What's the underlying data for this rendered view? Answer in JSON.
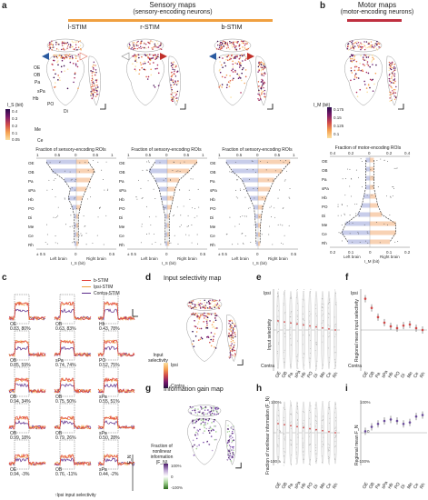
{
  "panels": {
    "a": {
      "label": "a",
      "header_title": "Sensory maps",
      "header_subtitle": "(sensory-encoding neurons)",
      "header_color": "#f0a040",
      "maps": [
        {
          "title": "l-STIM"
        },
        {
          "title": "r-STIM"
        },
        {
          "title": "b-STIM"
        }
      ],
      "colorbar_label": "I_S (bit)",
      "colorbar_ticks": [
        "0.4",
        "0.3",
        "0.2",
        "0.1",
        "0.05"
      ],
      "map_region_labels": [
        "OE",
        "OB",
        "Pa",
        "sPa",
        "Hb",
        "PO",
        "Di",
        "Me",
        "Ce"
      ],
      "fraction_title": "Fraction of sensory-encoding ROIs",
      "fraction_ticks": [
        "1",
        "0.5",
        "0",
        "0.5",
        "1"
      ],
      "regions": [
        "OE",
        "OB",
        "Pa",
        "sPa",
        "Hb",
        "PO",
        "Di",
        "Me",
        "Ce",
        "Rh"
      ],
      "x_ticks": [
        "± 0.5",
        "0",
        "0.5"
      ],
      "left_label": "Left brain",
      "right_label": "Right brain",
      "xlabel": "I_S (bit)"
    },
    "b": {
      "label": "b",
      "header_title": "Motor maps",
      "header_subtitle": "(motor-encoding neurons)",
      "header_color": "#c03040",
      "colorbar_label": "I_M (bit)",
      "colorbar_ticks": [
        "0.175",
        "0.15",
        "0.125",
        "0.1"
      ],
      "fraction_title": "Fraction of motor-encoding ROIs",
      "fraction_ticks": [
        "0.4",
        "0.2",
        "0",
        "0.2",
        "0.4"
      ],
      "x_ticks": [
        "0.2",
        "0.1",
        "0",
        "0.1",
        "0.2"
      ],
      "left_label": "Left brain",
      "right_label": "Right brain",
      "xlabel": "I_M (bit)"
    },
    "c": {
      "label": "c",
      "legend": [
        {
          "name": "b-STIM",
          "color": "#e0403a"
        },
        {
          "name": "Ipsi-STIM",
          "color": "#f0a040"
        },
        {
          "name": "Contra-STIM",
          "color": "#5a2a8a"
        }
      ],
      "traces": [
        {
          "region": "OE",
          "stats": "0.83, 80%"
        },
        {
          "region": "OB",
          "stats": "0.63, 83%"
        },
        {
          "region": "Hb",
          "stats": "0.43, 78%"
        },
        {
          "region": "OB",
          "stats": "0.85, 59%"
        },
        {
          "region": "sPa",
          "stats": "0.74, 74%"
        },
        {
          "region": "PO",
          "stats": "0.52, 75%"
        },
        {
          "region": "OB",
          "stats": "0.94, 34%"
        },
        {
          "region": "OB",
          "stats": "0.75, 50%"
        },
        {
          "region": "sPa",
          "stats": "0.55, 51%"
        },
        {
          "region": "OB",
          "stats": "0.99, 18%"
        },
        {
          "region": "OB",
          "stats": "0.79, 26%"
        },
        {
          "region": "sPa",
          "stats": "0.50, 28%"
        },
        {
          "region": "OE",
          "stats": "0.94, -3%"
        },
        {
          "region": "OB",
          "stats": "0.76, -11%"
        },
        {
          "region": "sPa",
          "stats": "0.44, -2%"
        }
      ],
      "side_label": "F_N",
      "bottom_label": "↑Ipsi input selectivity"
    },
    "d": {
      "label": "d",
      "title": "Input selectivity map",
      "colorbar_title": "Input selectivity",
      "colorbar_top": "Ipsi",
      "colorbar_bottom": "Contra"
    },
    "e": {
      "label": "e",
      "ylabel": "Input selectivity",
      "y_top": "Ipsi",
      "y_bottom": "Contra",
      "categories": [
        "OE",
        "OB",
        "Pa",
        "sPa",
        "Hb",
        "PO",
        "Di",
        "Me",
        "Ce",
        "Rh"
      ]
    },
    "f": {
      "label": "f",
      "ylabel": "Regional mean input selectivity",
      "y_top": "Ipsi",
      "y_bottom": "Contra",
      "categories": [
        "OE",
        "OB",
        "Pa",
        "sPa",
        "Hb",
        "PO",
        "Di",
        "Me",
        "Ce",
        "Rh"
      ]
    },
    "g": {
      "label": "g",
      "title": "Information gain map",
      "colorbar_title": "Fraction of nonlinear information (F_N)",
      "colorbar_ticks": [
        "100%",
        "0",
        "-100%"
      ]
    },
    "h": {
      "label": "h",
      "ylabel": "Fraction of nonlinear information (F_N)",
      "y_ticks": [
        "100%",
        "0",
        "-100%"
      ],
      "categories": [
        "OE",
        "OB",
        "Pa",
        "sPa",
        "Hb",
        "PO",
        "Di",
        "Me",
        "Ce",
        "Rh"
      ]
    },
    "i": {
      "label": "i",
      "ylabel": "Regional mean F_N",
      "y_ticks": [
        "100%",
        "0",
        "-100%"
      ],
      "categories": [
        "OE",
        "OB",
        "Pa",
        "sPa",
        "Hb",
        "PO",
        "Di",
        "Me",
        "Ce",
        "Rh"
      ]
    }
  },
  "chart_data": [
    {
      "type": "scatter",
      "panel": "f",
      "categories": [
        "OE",
        "OB",
        "Pa",
        "sPa",
        "Hb",
        "PO",
        "Di",
        "Me",
        "Ce",
        "Rh"
      ],
      "values": [
        0.85,
        0.6,
        0.35,
        0.2,
        0.1,
        0.05,
        0.12,
        0.15,
        0.05,
        0.0
      ],
      "ylim": [
        -1,
        1
      ]
    },
    {
      "type": "scatter",
      "panel": "i",
      "categories": [
        "OE",
        "OB",
        "Pa",
        "sPa",
        "Hb",
        "PO",
        "Di",
        "Me",
        "Ce",
        "Rh"
      ],
      "values": [
        0.05,
        0.2,
        0.3,
        0.4,
        0.45,
        0.4,
        0.3,
        0.35,
        0.55,
        0.6
      ],
      "ylim": [
        -1,
        1
      ]
    }
  ],
  "colors": {
    "sensory": "#f0a040",
    "motor": "#c03040",
    "left_fill": "#c8cdea",
    "right_fill": "#f8d2b4",
    "ipsi": "#e07a3a",
    "contra": "#4a1a6a"
  }
}
